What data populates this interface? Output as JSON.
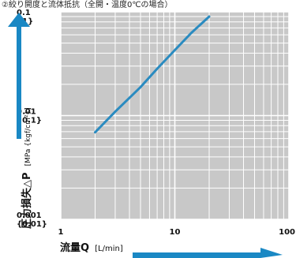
{
  "header_fragment": "②絞り開度と流体抵抗（全開・温度0℃の場合）",
  "chart_data": {
    "type": "line",
    "title": "",
    "x_scale": "log",
    "y_scale": "log",
    "xlim": [
      1,
      100
    ],
    "ylim": [
      0.001,
      0.1
    ],
    "x_ticks": [
      {
        "value": 1,
        "label": "1"
      },
      {
        "value": 10,
        "label": "10"
      },
      {
        "value": 100,
        "label": "100"
      }
    ],
    "y_ticks": [
      {
        "value": 0.1,
        "label": "0.1",
        "sublabel": "{1}"
      },
      {
        "value": 0.01,
        "label": "0.01",
        "sublabel": "{0.1}"
      },
      {
        "value": 0.001,
        "label": "0.001",
        "sublabel": "{0.01}"
      }
    ],
    "xlabel": {
      "main": "流量Q",
      "unit": "[L/min]"
    },
    "ylabel": {
      "main": "圧力損失△P",
      "unit": "[MPa {kgf/cm²}]"
    },
    "grid": true,
    "series": [
      {
        "name": "",
        "color": "#2a8bc0",
        "points": [
          [
            2,
            0.0069
          ],
          [
            3,
            0.0109
          ],
          [
            5,
            0.0188
          ],
          [
            7,
            0.0283
          ],
          [
            10,
            0.0428
          ],
          [
            14,
            0.0629
          ],
          [
            20,
            0.0901
          ]
        ]
      }
    ],
    "colors": {
      "plot_bg": "#c8c8c8",
      "grid": "#ffffff",
      "arrow": "#1a88c4"
    }
  }
}
